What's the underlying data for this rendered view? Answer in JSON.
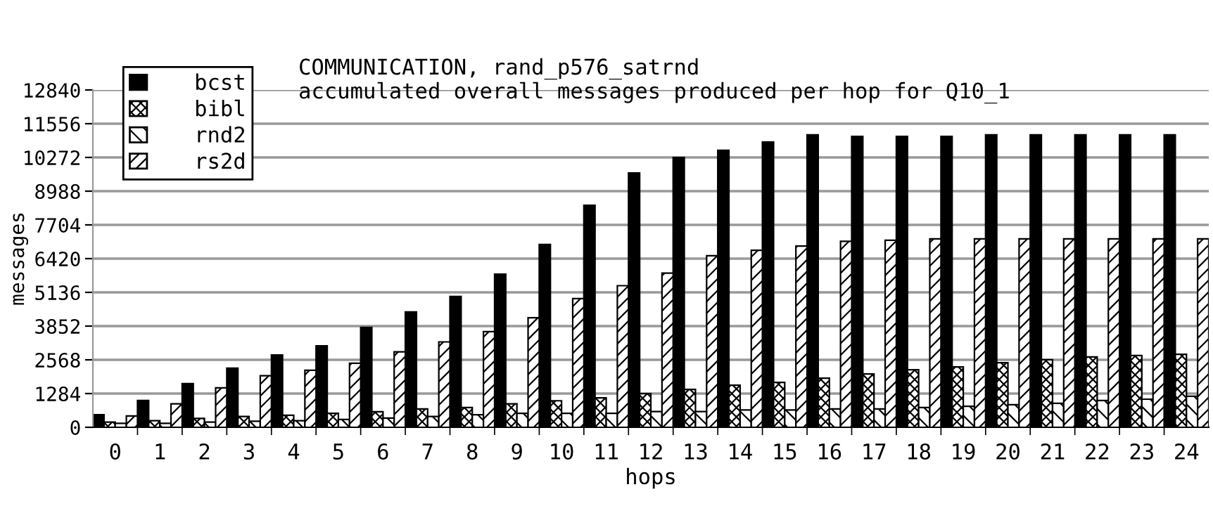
{
  "chart_data": {
    "type": "bar",
    "title": "COMMUNICATION, rand_p576_satrnd",
    "subtitle": "accumulated overall messages produced per hop for Q10_1",
    "xlabel": "hops",
    "ylabel": "messages",
    "categories": [
      "0",
      "1",
      "2",
      "3",
      "4",
      "5",
      "6",
      "7",
      "8",
      "9",
      "10",
      "11",
      "12",
      "13",
      "14",
      "15",
      "16",
      "17",
      "18",
      "19",
      "20",
      "21",
      "22",
      "23",
      "24"
    ],
    "series": [
      {
        "name": "bcst",
        "color": "#000000",
        "values": [
          480,
          1020,
          1660,
          2250,
          2750,
          3100,
          3800,
          4390,
          4980,
          5830,
          6960,
          8450,
          9680,
          10270,
          10540,
          10860,
          11130,
          11070,
          11070,
          11070,
          11130,
          11130,
          11130,
          11130,
          11130
        ]
      },
      {
        "name": "bibl",
        "color": "#000000",
        "values": [
          200,
          250,
          340,
          410,
          460,
          530,
          590,
          700,
          750,
          890,
          1010,
          1120,
          1280,
          1440,
          1600,
          1710,
          1870,
          2030,
          2190,
          2300,
          2460,
          2570,
          2680,
          2730,
          2780
        ]
      },
      {
        "name": "rnd2",
        "color": "#000000",
        "values": [
          150,
          150,
          200,
          230,
          250,
          300,
          350,
          410,
          480,
          530,
          530,
          530,
          600,
          600,
          660,
          660,
          700,
          700,
          750,
          800,
          860,
          910,
          1020,
          1070,
          1180
        ]
      },
      {
        "name": "rs2d",
        "color": "#000000",
        "values": [
          430,
          890,
          1500,
          1960,
          2170,
          2440,
          2870,
          3250,
          3640,
          4170,
          4900,
          5390,
          5870,
          6530,
          6740,
          6900,
          7080,
          7120,
          7170,
          7170,
          7170,
          7170,
          7170,
          7170,
          7170
        ]
      }
    ],
    "ylim": [
      0,
      12840
    ],
    "yticks": [
      0,
      1284,
      2568,
      3852,
      5136,
      6420,
      7704,
      8988,
      10272,
      11556,
      12840
    ],
    "grid": "y",
    "legend": "top left"
  }
}
